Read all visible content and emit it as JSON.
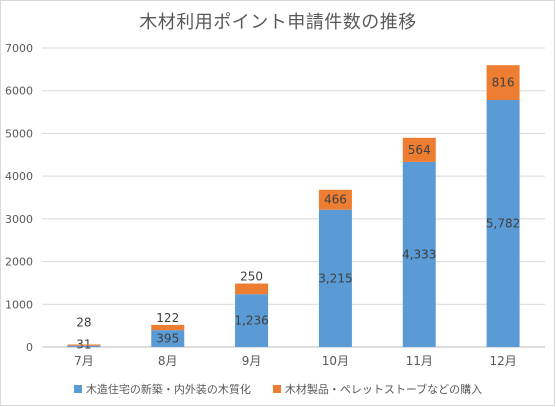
{
  "chart_data": {
    "type": "bar",
    "stacked": true,
    "title": "木材利用ポイント申請件数の推移",
    "categories": [
      "7月",
      "8月",
      "9月",
      "10月",
      "11月",
      "12月"
    ],
    "ylim": [
      0,
      7000
    ],
    "yticks": [
      "0",
      "1000",
      "2000",
      "3000",
      "4000",
      "5000",
      "6000",
      "7000"
    ],
    "grid": true,
    "legend_position": "bottom",
    "series": [
      {
        "name": "木造住宅の新築・内外装の木質化",
        "color": "#5b9bd5",
        "values": [
          31,
          395,
          1236,
          3215,
          4333,
          5782
        ],
        "labels": [
          "31",
          "395",
          "1,236",
          "3,215",
          "4,333",
          "5,782"
        ]
      },
      {
        "name": "木材製品・ペレットストーブなどの購入",
        "color": "#ed7d31",
        "values": [
          28,
          122,
          250,
          466,
          564,
          816
        ],
        "labels": [
          "28",
          "122",
          "250",
          "466",
          "564",
          "816"
        ]
      }
    ]
  }
}
